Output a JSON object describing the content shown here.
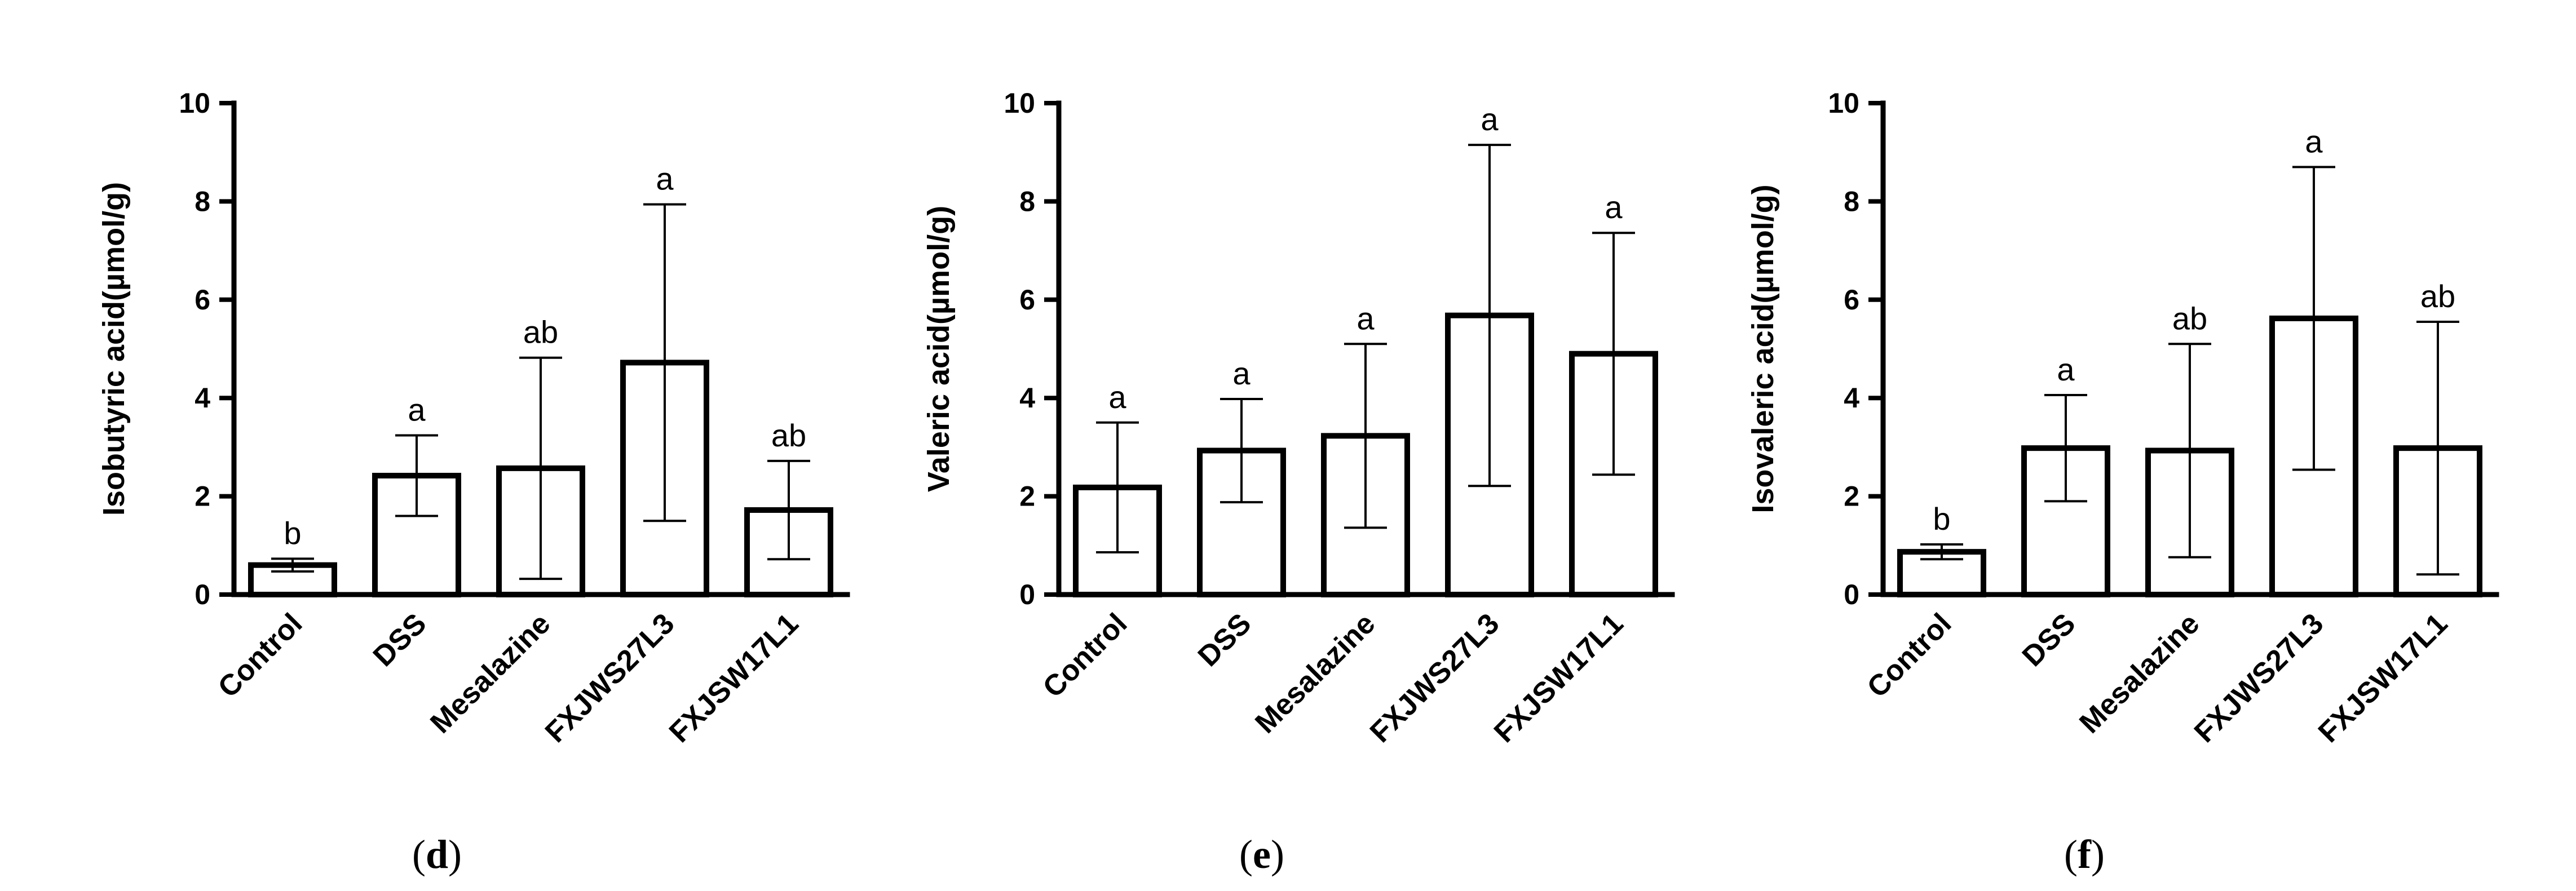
{
  "chart_data": [
    {
      "type": "bar",
      "panel": "d",
      "ylabel": "Isobutyric acid(µmol/g)",
      "ylim": [
        0,
        10
      ],
      "yticks": [
        0,
        2,
        4,
        6,
        8,
        10
      ],
      "categories": [
        "Control",
        "DSS",
        "Mesalazine",
        "FXJWS27L3",
        "FXJSW17L1"
      ],
      "values": [
        0.6,
        2.42,
        2.57,
        4.72,
        1.72
      ],
      "errors": [
        0.13,
        0.82,
        2.25,
        3.22,
        1.0
      ],
      "significance": [
        "b",
        "a",
        "ab",
        "a",
        "ab"
      ]
    },
    {
      "type": "bar",
      "panel": "e",
      "ylabel": "Valeric acid(µmol/g)",
      "ylim": [
        0,
        10
      ],
      "yticks": [
        0,
        2,
        4,
        6,
        8,
        10
      ],
      "categories": [
        "Control",
        "DSS",
        "Mesalazine",
        "FXJWS27L3",
        "FXJSW17L1"
      ],
      "values": [
        2.18,
        2.93,
        3.23,
        5.68,
        4.9
      ],
      "errors": [
        1.32,
        1.05,
        1.87,
        3.47,
        2.46
      ],
      "significance": [
        "a",
        "a",
        "a",
        "a",
        "a"
      ]
    },
    {
      "type": "bar",
      "panel": "f",
      "ylabel": "Isovaleric acid(µmol/g)",
      "ylim": [
        0,
        10
      ],
      "yticks": [
        0,
        2,
        4,
        6,
        8,
        10
      ],
      "categories": [
        "Control",
        "DSS",
        "Mesalazine",
        "FXJWS27L3",
        "FXJSW17L1"
      ],
      "values": [
        0.87,
        2.98,
        2.93,
        5.62,
        2.98
      ],
      "errors": [
        0.15,
        1.08,
        2.17,
        3.08,
        2.57
      ],
      "significance": [
        "b",
        "a",
        "ab",
        "a",
        "ab"
      ]
    }
  ]
}
